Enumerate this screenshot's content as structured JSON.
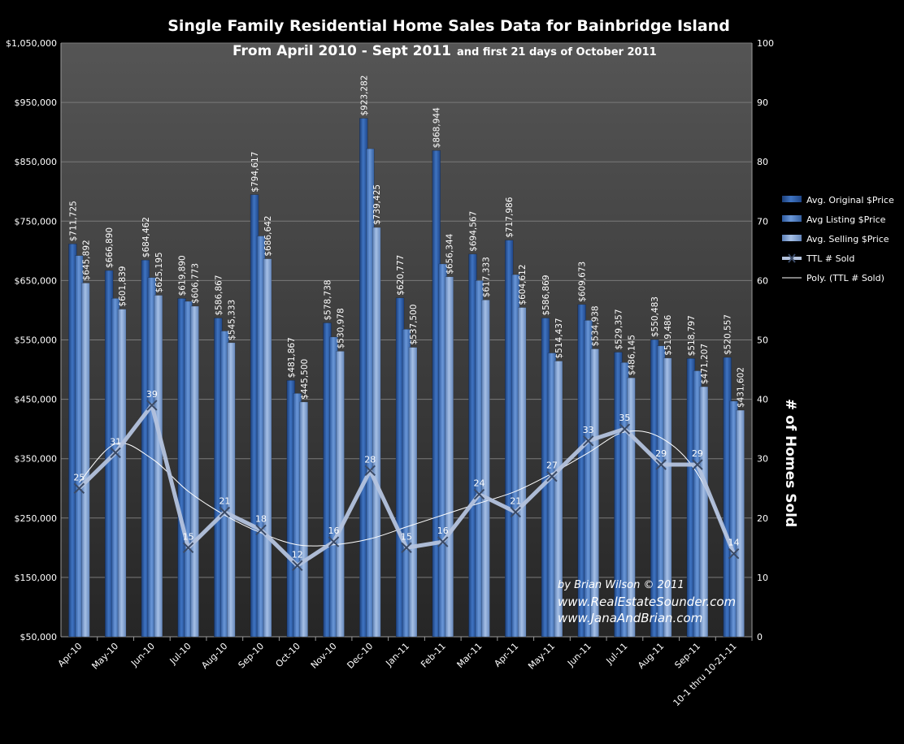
{
  "chart_data": {
    "type": "bar",
    "title": "Single Family Residential Home Sales Data for Bainbridge Island",
    "subtitle_main": "From April 2010 - Sept 2011",
    "subtitle_note": "and first 21 days of October 2011",
    "ylabel_right": "# of Homes Sold",
    "ylim_left": [
      50000,
      1050000
    ],
    "ylim_right": [
      0,
      100
    ],
    "left_ticks": [
      "$50,000",
      "$150,000",
      "$250,000",
      "$350,000",
      "$450,000",
      "$550,000",
      "$650,000",
      "$750,000",
      "$850,000",
      "$950,000",
      "$1,050,000"
    ],
    "right_ticks": [
      "0",
      "10",
      "20",
      "30",
      "40",
      "50",
      "60",
      "70",
      "80",
      "90",
      "100"
    ],
    "grid": true,
    "legend_position": "right",
    "categories": [
      "Apr-10",
      "May-10",
      "Jun-10",
      "Jul-10",
      "Aug-10",
      "Sep-10",
      "Oct-10",
      "Nov-10",
      "Dec-10",
      "Jan-11",
      "Feb-11",
      "Mar-11",
      "Apr-11",
      "May-11",
      "Jun-11",
      "Jul-11",
      "Aug-11",
      "Sep-11",
      "10-1 thru 10-21-11"
    ],
    "series": [
      {
        "name": "Avg. Original $Price",
        "axis": "left",
        "values": [
          711725,
          666890,
          684462,
          619890,
          586867,
          794617,
          481867,
          578738,
          923282,
          620777,
          868944,
          694567,
          717986,
          586869,
          609673,
          529357,
          550483,
          518797,
          520557
        ],
        "labels": [
          "$711,725",
          "$666,890",
          "$684,462",
          "$619,890",
          "$586,867",
          "$794,617",
          "$481,867",
          "$578,738",
          "$923,282",
          "$620,777",
          "$868,944",
          "$694,567",
          "$717,986",
          "$586,869",
          "$609,673",
          "$529,357",
          "$550,483",
          "$518,797",
          "$520,557"
        ]
      },
      {
        "name": "Avg Listing $Price",
        "axis": "left",
        "values": [
          692000,
          620000,
          655000,
          615000,
          565000,
          725000,
          460000,
          555000,
          872000,
          568000,
          678000,
          650000,
          660000,
          528000,
          583000,
          512000,
          540000,
          498000,
          447000
        ],
        "labels": [
          "",
          "",
          "",
          "",
          "",
          "",
          "",
          "",
          "",
          "",
          "",
          "",
          "",
          "",
          "",
          "",
          "",
          "",
          ""
        ]
      },
      {
        "name": "Avg. Selling $Price",
        "axis": "left",
        "values": [
          645892,
          601839,
          625195,
          606773,
          545333,
          686642,
          445500,
          530978,
          739425,
          537500,
          656344,
          617333,
          604612,
          514437,
          534938,
          486145,
          519486,
          471207,
          431602
        ],
        "labels": [
          "$645,892",
          "$601,839",
          "$625,195",
          "$606,773",
          "$545,333",
          "$686,642",
          "$445,500",
          "$530,978",
          "$739,425",
          "$537,500",
          "$656,344",
          "$617,333",
          "$604,612",
          "$514,437",
          "$534,938",
          "$486,145",
          "$519,486",
          "$471,207",
          "$431,602"
        ]
      },
      {
        "name": "TTL # Sold",
        "axis": "right",
        "type": "line",
        "values": [
          25,
          31,
          39,
          15,
          21,
          18,
          12,
          16,
          28,
          15,
          16,
          24,
          21,
          27,
          33,
          35,
          29,
          29,
          14
        ],
        "labels": [
          "25",
          "31",
          "39",
          "15",
          "21",
          "18",
          "12",
          "16",
          "28",
          "15",
          "16",
          "24",
          "21",
          "27",
          "33",
          "35",
          "29",
          "29",
          "14"
        ]
      },
      {
        "name": "Poly. (TTL # Sold)",
        "axis": "right",
        "type": "trendline",
        "values": [
          26.0,
          32.5,
          30.0,
          24.5,
          20.5,
          17.5,
          15.5,
          15.5,
          16.5,
          18.5,
          20.5,
          22.5,
          24.5,
          27.5,
          31.0,
          34.5,
          33.5,
          27.5,
          14.0
        ]
      }
    ],
    "colors": {
      "original": "#2f5fa8",
      "listing": "#4a7cc4",
      "selling": "#7f9fd1",
      "line": "#b4c3de",
      "trend": "#ffffff",
      "plot_bg": "#3a3a3a",
      "grid": "#7a7a7a"
    },
    "credits": [
      "by Brian Wilson  © 2011",
      "www.RealEstateSounder.com",
      "www.JanaAndBrian.com"
    ]
  }
}
